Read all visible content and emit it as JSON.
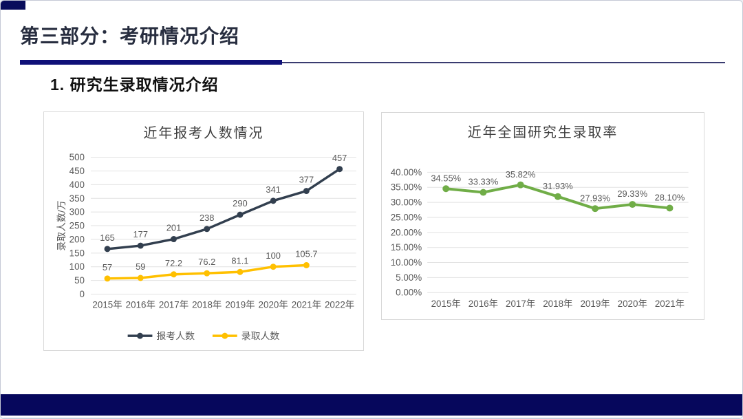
{
  "header": {
    "title": "第三部分：考研情况介绍"
  },
  "section": {
    "subtitle": "1. 研究生录取情况介绍"
  },
  "theme": {
    "accent_navy": "#06075c",
    "rule_navy": "#0f1078",
    "applicants_color": "#323f4f",
    "admitted_color": "#ffc000",
    "rate_color": "#70ad47"
  },
  "chart_data": [
    {
      "type": "line",
      "title": "近年报考人数情况",
      "xlabel": "",
      "ylabel": "录取人数/万",
      "categories": [
        "2015年",
        "2016年",
        "2017年",
        "2018年",
        "2019年",
        "2020年",
        "2021年",
        "2022年"
      ],
      "series": [
        {
          "name": "报考人数",
          "color": "#323f4f",
          "values": [
            165,
            177,
            201,
            238,
            290,
            341,
            377,
            457
          ],
          "labels": [
            "165",
            "177",
            "201",
            "238",
            "290",
            "341",
            "377",
            "457"
          ]
        },
        {
          "name": "录取人数",
          "color": "#ffc000",
          "values": [
            57,
            59,
            72.2,
            76.2,
            81.1,
            100,
            105.7
          ],
          "labels": [
            "57",
            "59",
            "72.2",
            "76.2",
            "81.1",
            "100",
            "105.7"
          ]
        }
      ],
      "ylim": [
        0,
        500
      ],
      "ytick_step": 50,
      "ytick_labels": [
        "0",
        "50",
        "100",
        "150",
        "200",
        "250",
        "300",
        "350",
        "400",
        "450",
        "500"
      ],
      "grid": true,
      "legend": true,
      "legend_position": "bottom"
    },
    {
      "type": "line",
      "title": "近年全国研究生录取率",
      "xlabel": "",
      "ylabel": "",
      "categories": [
        "2015年",
        "2016年",
        "2017年",
        "2018年",
        "2019年",
        "2020年",
        "2021年"
      ],
      "series": [
        {
          "name": "录取率",
          "color": "#70ad47",
          "values": [
            34.55,
            33.33,
            35.82,
            31.93,
            27.93,
            29.33,
            28.1
          ],
          "labels": [
            "34.55%",
            "33.33%",
            "35.82%",
            "31.93%",
            "27.93%",
            "29.33%",
            "28.10%"
          ]
        }
      ],
      "ylim": [
        0,
        40
      ],
      "ytick_step": 5,
      "ytick_labels": [
        "0.00%",
        "5.00%",
        "10.00%",
        "15.00%",
        "20.00%",
        "25.00%",
        "30.00%",
        "35.00%",
        "40.00%"
      ],
      "grid": true,
      "legend": false
    }
  ]
}
